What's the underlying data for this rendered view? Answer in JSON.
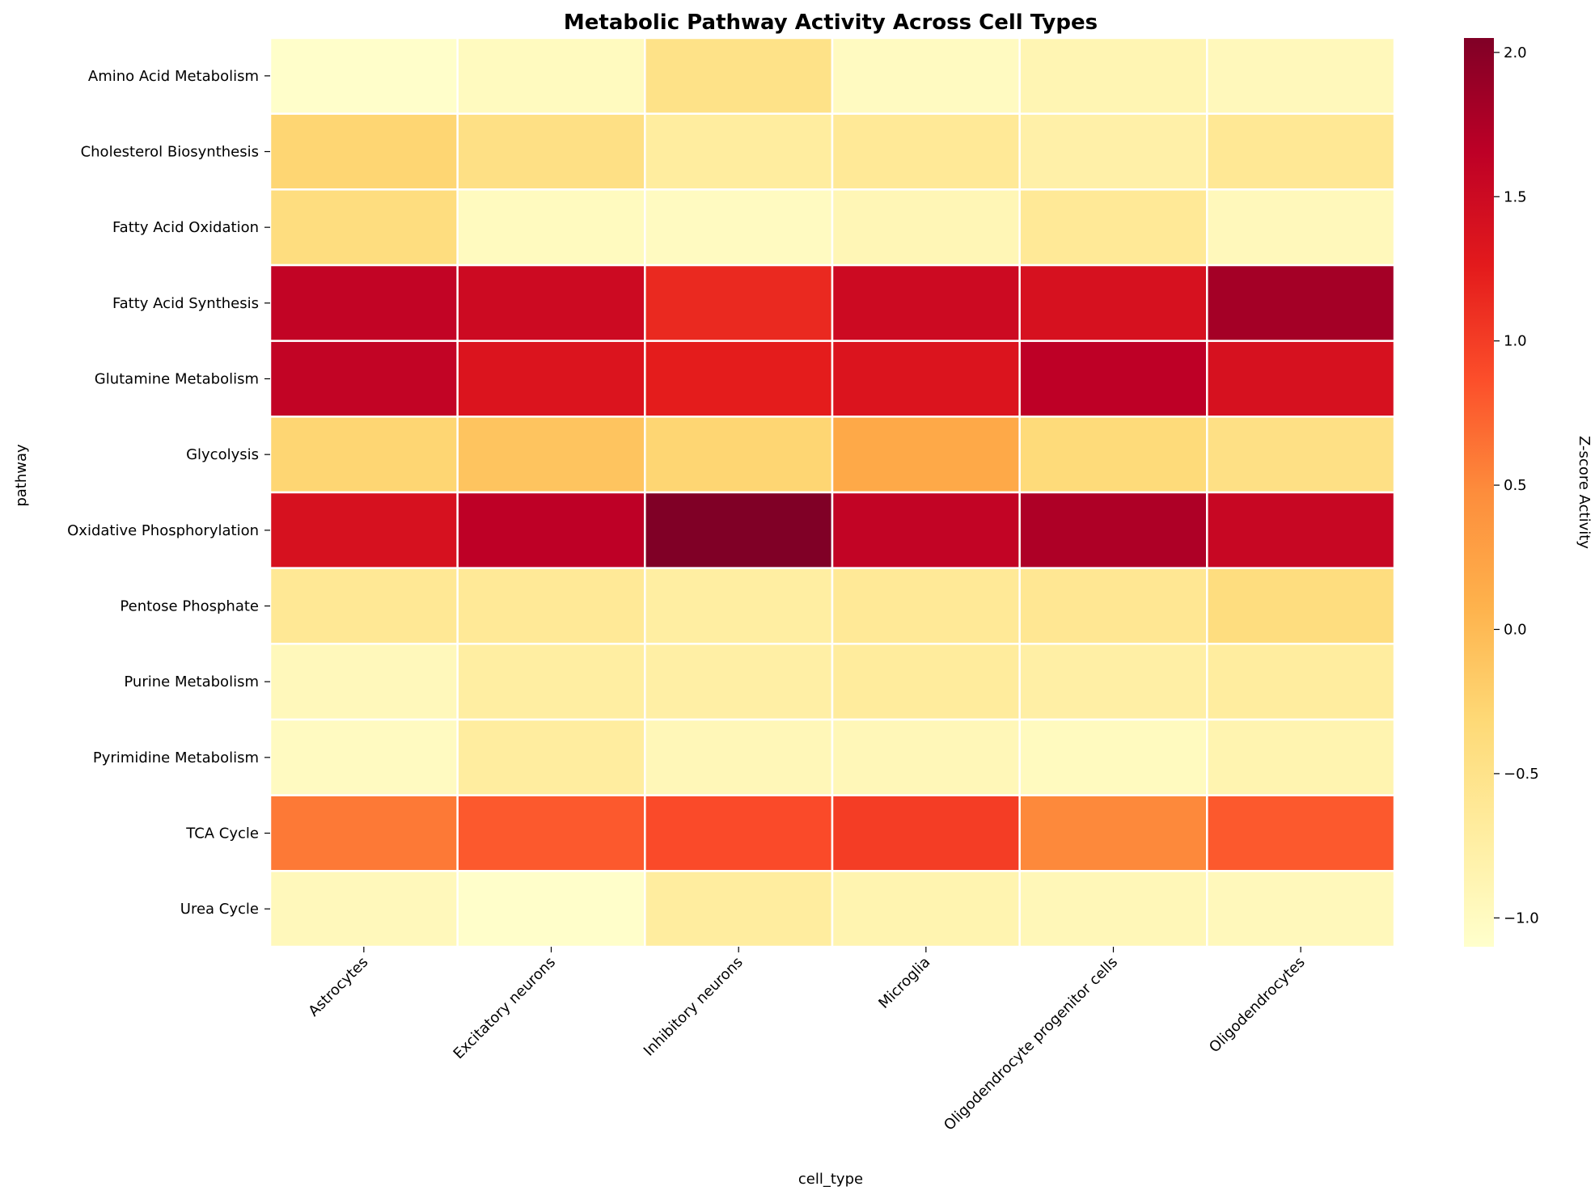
{
  "chart_data": {
    "type": "heatmap",
    "title": "Metabolic Pathway Activity Across Cell Types",
    "xlabel": "cell_type",
    "ylabel": "pathway",
    "x": [
      "Astrocytes",
      "Excitatory neurons",
      "Inhibitory neurons",
      "Microglia",
      "Oligodendrocyte progenitor cells",
      "Oligodendrocytes"
    ],
    "y": [
      "Amino Acid Metabolism",
      "Cholesterol Biosynthesis",
      "Fatty Acid Oxidation",
      "Fatty Acid Synthesis",
      "Glutamine Metabolism",
      "Glycolysis",
      "Oxidative Phosphorylation",
      "Pentose Phosphate",
      "Purine Metabolism",
      "Pyrimidine Metabolism",
      "TCA Cycle",
      "Urea Cycle"
    ],
    "values": [
      [
        -1.08,
        -0.98,
        -0.48,
        -1.0,
        -0.88,
        -0.95
      ],
      [
        -0.28,
        -0.45,
        -0.7,
        -0.62,
        -0.78,
        -0.6
      ],
      [
        -0.4,
        -0.98,
        -1.0,
        -0.9,
        -0.62,
        -0.95
      ],
      [
        1.6,
        1.5,
        1.15,
        1.5,
        1.4,
        1.82
      ],
      [
        1.6,
        1.35,
        1.25,
        1.35,
        1.65,
        1.4
      ],
      [
        -0.28,
        -0.1,
        -0.28,
        0.18,
        -0.35,
        -0.45
      ],
      [
        1.4,
        1.65,
        2.05,
        1.6,
        1.75,
        1.55
      ],
      [
        -0.6,
        -0.62,
        -0.72,
        -0.62,
        -0.58,
        -0.4
      ],
      [
        -0.95,
        -0.72,
        -0.75,
        -0.68,
        -0.75,
        -0.7
      ],
      [
        -1.0,
        -0.7,
        -0.92,
        -0.92,
        -0.98,
        -0.85
      ],
      [
        0.6,
        0.8,
        0.9,
        1.0,
        0.5,
        0.8
      ],
      [
        -0.95,
        -1.08,
        -0.7,
        -0.85,
        -0.92,
        -0.95
      ]
    ],
    "color_range": [
      -1.1,
      2.05
    ],
    "colormap": "YlOrRd",
    "colorbar": {
      "label": "Z-score Activity",
      "ticks": [
        -1.0,
        -0.5,
        0.0,
        0.5,
        1.0,
        1.5,
        2.0
      ],
      "tick_labels": [
        "−1.0",
        "−0.5",
        "0.0",
        "0.5",
        "1.0",
        "1.5",
        "2.0"
      ]
    },
    "cell_border_color": "#ffffff",
    "grid": false,
    "legend": "colorbar-right"
  }
}
